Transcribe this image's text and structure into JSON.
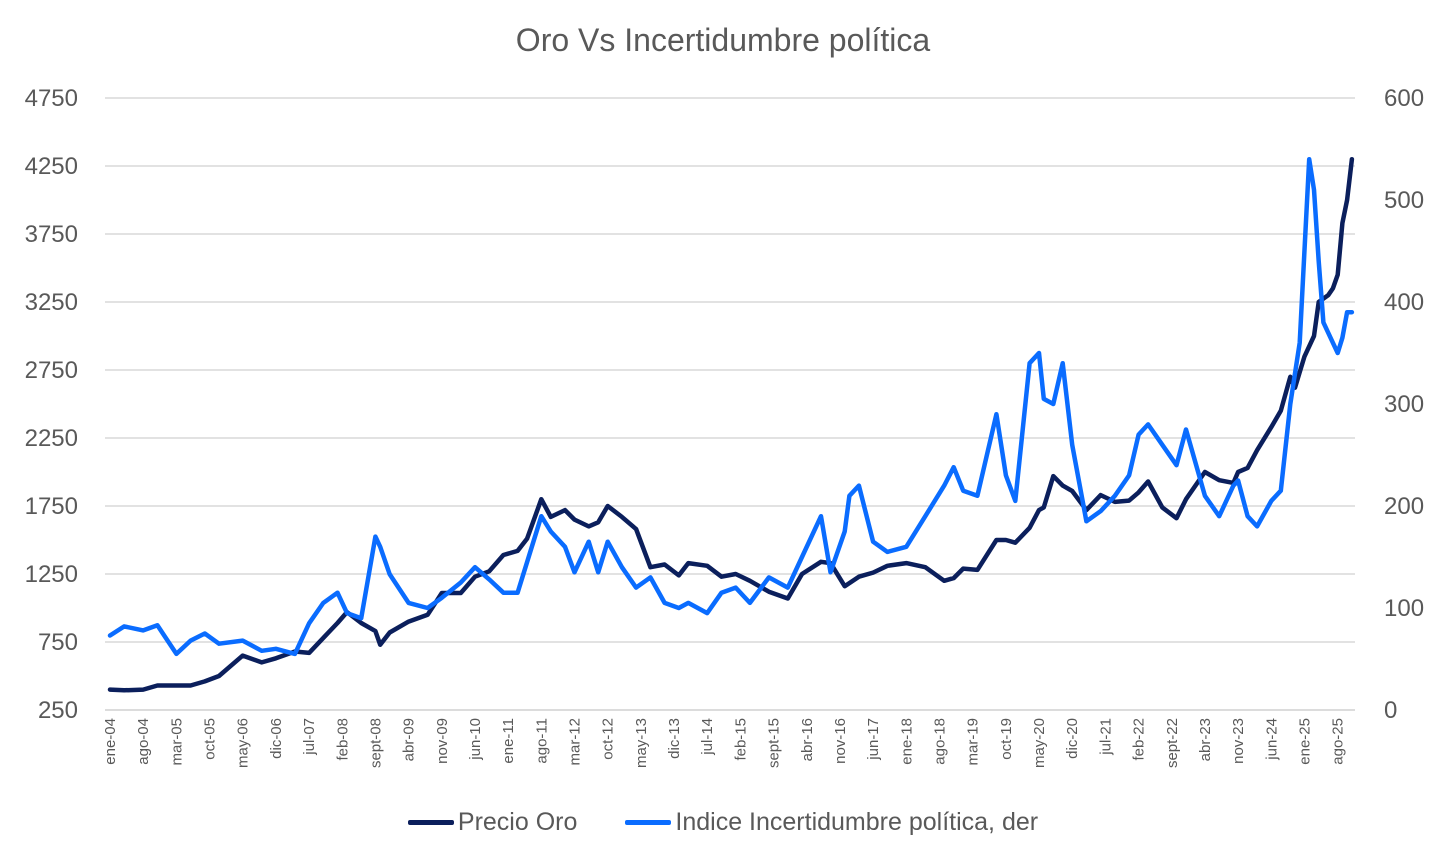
{
  "chart_data": {
    "type": "line",
    "title": "Oro Vs Incertidumbre política",
    "y_left": {
      "ticks": [
        250,
        750,
        1250,
        1750,
        2250,
        2750,
        3250,
        3750,
        4250,
        4750
      ],
      "range": [
        250,
        4750
      ]
    },
    "y_right": {
      "ticks": [
        0,
        100,
        200,
        300,
        400,
        500,
        600
      ],
      "range": [
        0,
        600
      ]
    },
    "x_tick_labels": [
      "ene-04",
      "ago-04",
      "mar-05",
      "oct-05",
      "may-06",
      "dic-06",
      "jul-07",
      "feb-08",
      "sept-08",
      "abr-09",
      "nov-09",
      "jun-10",
      "ene-11",
      "ago-11",
      "mar-12",
      "oct-12",
      "may-13",
      "dic-13",
      "jul-14",
      "feb-15",
      "sept-15",
      "abr-16",
      "nov-16",
      "jun-17",
      "ene-18",
      "ago-18",
      "mar-19",
      "oct-19",
      "may-20",
      "dic-20",
      "jul-21",
      "feb-22",
      "sept-22",
      "abr-23",
      "nov-23",
      "jun-24",
      "ene-25",
      "ago-25"
    ],
    "x_range": [
      "2004-01",
      "2025-11"
    ],
    "grid": "horizontal",
    "legend_position": "bottom",
    "series": [
      {
        "name": "Precio Oro",
        "axis": "left",
        "color": "#0b1f5c",
        "points": [
          [
            "2004-01",
            400
          ],
          [
            "2004-04",
            395
          ],
          [
            "2004-08",
            400
          ],
          [
            "2004-11",
            430
          ],
          [
            "2005-03",
            430
          ],
          [
            "2005-06",
            430
          ],
          [
            "2005-09",
            460
          ],
          [
            "2005-12",
            500
          ],
          [
            "2006-05",
            650
          ],
          [
            "2006-09",
            600
          ],
          [
            "2006-12",
            630
          ],
          [
            "2007-04",
            680
          ],
          [
            "2007-07",
            670
          ],
          [
            "2007-10",
            780
          ],
          [
            "2008-01",
            890
          ],
          [
            "2008-03",
            970
          ],
          [
            "2008-06",
            890
          ],
          [
            "2008-09",
            830
          ],
          [
            "2008-10",
            730
          ],
          [
            "2008-12",
            820
          ],
          [
            "2009-04",
            900
          ],
          [
            "2009-08",
            950
          ],
          [
            "2009-11",
            1110
          ],
          [
            "2010-03",
            1110
          ],
          [
            "2010-06",
            1230
          ],
          [
            "2010-09",
            1270
          ],
          [
            "2010-12",
            1390
          ],
          [
            "2011-03",
            1420
          ],
          [
            "2011-05",
            1510
          ],
          [
            "2011-08",
            1800
          ],
          [
            "2011-10",
            1670
          ],
          [
            "2012-01",
            1720
          ],
          [
            "2012-03",
            1650
          ],
          [
            "2012-06",
            1600
          ],
          [
            "2012-08",
            1630
          ],
          [
            "2012-10",
            1750
          ],
          [
            "2013-01",
            1670
          ],
          [
            "2013-04",
            1580
          ],
          [
            "2013-07",
            1300
          ],
          [
            "2013-10",
            1320
          ],
          [
            "2014-01",
            1240
          ],
          [
            "2014-03",
            1330
          ],
          [
            "2014-07",
            1310
          ],
          [
            "2014-10",
            1230
          ],
          [
            "2015-01",
            1250
          ],
          [
            "2015-04",
            1200
          ],
          [
            "2015-08",
            1120
          ],
          [
            "2015-12",
            1070
          ],
          [
            "2016-03",
            1250
          ],
          [
            "2016-07",
            1340
          ],
          [
            "2016-09",
            1330
          ],
          [
            "2016-12",
            1160
          ],
          [
            "2017-03",
            1230
          ],
          [
            "2017-06",
            1260
          ],
          [
            "2017-09",
            1310
          ],
          [
            "2018-01",
            1330
          ],
          [
            "2018-05",
            1300
          ],
          [
            "2018-09",
            1200
          ],
          [
            "2018-11",
            1220
          ],
          [
            "2019-01",
            1290
          ],
          [
            "2019-04",
            1280
          ],
          [
            "2019-08",
            1500
          ],
          [
            "2019-10",
            1500
          ],
          [
            "2019-12",
            1480
          ],
          [
            "2020-03",
            1590
          ],
          [
            "2020-05",
            1720
          ],
          [
            "2020-06",
            1740
          ],
          [
            "2020-08",
            1970
          ],
          [
            "2020-10",
            1900
          ],
          [
            "2020-12",
            1860
          ],
          [
            "2021-03",
            1720
          ],
          [
            "2021-06",
            1830
          ],
          [
            "2021-09",
            1780
          ],
          [
            "2021-12",
            1790
          ],
          [
            "2022-02",
            1850
          ],
          [
            "2022-04",
            1930
          ],
          [
            "2022-07",
            1740
          ],
          [
            "2022-10",
            1660
          ],
          [
            "2022-12",
            1800
          ],
          [
            "2023-04",
            2000
          ],
          [
            "2023-07",
            1940
          ],
          [
            "2023-10",
            1920
          ],
          [
            "2023-11",
            2000
          ],
          [
            "2024-01",
            2030
          ],
          [
            "2024-03",
            2160
          ],
          [
            "2024-06",
            2330
          ],
          [
            "2024-08",
            2450
          ],
          [
            "2024-10",
            2700
          ],
          [
            "2024-11",
            2620
          ],
          [
            "2025-01",
            2850
          ],
          [
            "2025-03",
            3000
          ],
          [
            "2025-04",
            3250
          ],
          [
            "2025-06",
            3300
          ],
          [
            "2025-07",
            3350
          ],
          [
            "2025-08",
            3450
          ],
          [
            "2025-09",
            3830
          ],
          [
            "2025-10",
            4000
          ],
          [
            "2025-11",
            4300
          ]
        ]
      },
      {
        "name": "Indice Incertidumbre política, der",
        "axis": "right",
        "color": "#0a6cff",
        "points": [
          [
            "2004-01",
            73
          ],
          [
            "2004-04",
            82
          ],
          [
            "2004-08",
            78
          ],
          [
            "2004-11",
            83
          ],
          [
            "2005-03",
            55
          ],
          [
            "2005-06",
            68
          ],
          [
            "2005-09",
            75
          ],
          [
            "2005-12",
            65
          ],
          [
            "2006-05",
            68
          ],
          [
            "2006-09",
            58
          ],
          [
            "2006-12",
            60
          ],
          [
            "2007-04",
            55
          ],
          [
            "2007-07",
            85
          ],
          [
            "2007-10",
            105
          ],
          [
            "2008-01",
            115
          ],
          [
            "2008-03",
            95
          ],
          [
            "2008-06",
            90
          ],
          [
            "2008-09",
            170
          ],
          [
            "2008-10",
            160
          ],
          [
            "2008-12",
            133
          ],
          [
            "2009-04",
            105
          ],
          [
            "2009-08",
            100
          ],
          [
            "2009-11",
            110
          ],
          [
            "2010-03",
            125
          ],
          [
            "2010-06",
            140
          ],
          [
            "2010-09",
            128
          ],
          [
            "2010-12",
            115
          ],
          [
            "2011-03",
            115
          ],
          [
            "2011-05",
            145
          ],
          [
            "2011-08",
            190
          ],
          [
            "2011-10",
            175
          ],
          [
            "2012-01",
            160
          ],
          [
            "2012-03",
            135
          ],
          [
            "2012-06",
            165
          ],
          [
            "2012-08",
            135
          ],
          [
            "2012-10",
            165
          ],
          [
            "2013-01",
            140
          ],
          [
            "2013-04",
            120
          ],
          [
            "2013-07",
            130
          ],
          [
            "2013-10",
            105
          ],
          [
            "2014-01",
            100
          ],
          [
            "2014-03",
            105
          ],
          [
            "2014-07",
            95
          ],
          [
            "2014-10",
            115
          ],
          [
            "2015-01",
            120
          ],
          [
            "2015-04",
            105
          ],
          [
            "2015-08",
            130
          ],
          [
            "2015-12",
            120
          ],
          [
            "2016-03",
            150
          ],
          [
            "2016-07",
            190
          ],
          [
            "2016-09",
            135
          ],
          [
            "2016-12",
            175
          ],
          [
            "2017-01",
            210
          ],
          [
            "2017-03",
            220
          ],
          [
            "2017-06",
            165
          ],
          [
            "2017-09",
            155
          ],
          [
            "2018-01",
            160
          ],
          [
            "2018-05",
            190
          ],
          [
            "2018-09",
            220
          ],
          [
            "2018-11",
            238
          ],
          [
            "2019-01",
            215
          ],
          [
            "2019-04",
            210
          ],
          [
            "2019-08",
            290
          ],
          [
            "2019-10",
            230
          ],
          [
            "2019-12",
            205
          ],
          [
            "2020-03",
            340
          ],
          [
            "2020-05",
            350
          ],
          [
            "2020-06",
            305
          ],
          [
            "2020-08",
            300
          ],
          [
            "2020-10",
            340
          ],
          [
            "2020-12",
            260
          ],
          [
            "2021-03",
            185
          ],
          [
            "2021-06",
            195
          ],
          [
            "2021-09",
            210
          ],
          [
            "2021-12",
            230
          ],
          [
            "2022-02",
            270
          ],
          [
            "2022-04",
            280
          ],
          [
            "2022-07",
            260
          ],
          [
            "2022-10",
            240
          ],
          [
            "2022-12",
            275
          ],
          [
            "2023-04",
            210
          ],
          [
            "2023-07",
            190
          ],
          [
            "2023-10",
            220
          ],
          [
            "2023-11",
            225
          ],
          [
            "2024-01",
            190
          ],
          [
            "2024-03",
            180
          ],
          [
            "2024-06",
            205
          ],
          [
            "2024-08",
            215
          ],
          [
            "2024-10",
            300
          ],
          [
            "2024-12",
            360
          ],
          [
            "2025-02",
            540
          ],
          [
            "2025-03",
            510
          ],
          [
            "2025-04",
            440
          ],
          [
            "2025-05",
            380
          ],
          [
            "2025-07",
            360
          ],
          [
            "2025-08",
            350
          ],
          [
            "2025-09",
            365
          ],
          [
            "2025-10",
            390
          ],
          [
            "2025-11",
            390
          ]
        ]
      }
    ]
  },
  "legend": {
    "gold_label": "Precio Oro",
    "index_label": "Indice Incertidumbre política, der"
  }
}
